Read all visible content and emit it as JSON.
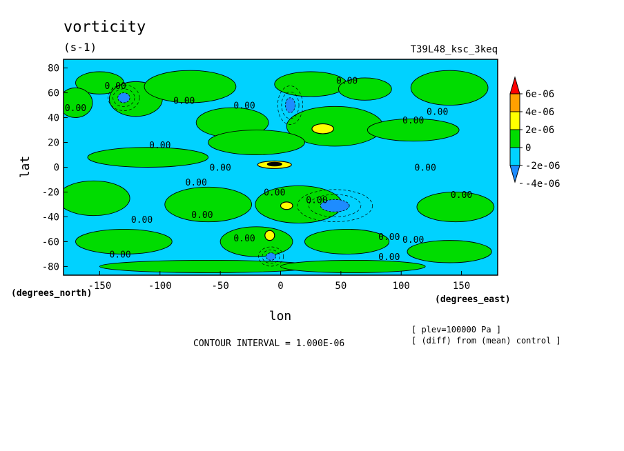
{
  "chart_data": {
    "type": "heatmap",
    "title": "vorticity",
    "subtitle": "(s-1)",
    "dataset_label": "T39L48_ksc_3keq",
    "xlabel": "lon",
    "ylabel": "lat",
    "x_units": "(degrees_east)",
    "y_units": "(degrees_north)",
    "xlim": [
      -180,
      180
    ],
    "ylim": [
      -87,
      87
    ],
    "x_ticks": [
      -150,
      -100,
      -50,
      0,
      50,
      100,
      150
    ],
    "y_ticks": [
      -80,
      -60,
      -40,
      -20,
      0,
      20,
      40,
      60,
      80
    ],
    "x_tick_labels": [
      "-150",
      "-100",
      "-50",
      "0",
      "50",
      "100",
      "150"
    ],
    "y_tick_labels": [
      "-80",
      "-60",
      "-40",
      "-20",
      "0",
      "20",
      "40",
      "60",
      "80"
    ],
    "contour_interval_text": "CONTOUR INTERVAL = 1.000E-06",
    "annotations": [
      "[ plev=100000 Pa ]",
      "[ (diff) from (mean) control ]"
    ],
    "colorbar": {
      "labels": [
        "6e-06",
        "4e-06",
        "2e-06",
        "0",
        "-2e-06",
        "-4e-06"
      ],
      "levels": [
        -4e-06,
        -2e-06,
        0,
        2e-06,
        4e-06,
        6e-06
      ],
      "colors": [
        "#1e8cff",
        "#00d2ff",
        "#00dc00",
        "#ffff00",
        "#ffa000",
        "#ff0000"
      ]
    },
    "contour_labels": [
      {
        "text": "0.00",
        "lon": -137,
        "lat": 66
      },
      {
        "text": "0.00",
        "lon": -170,
        "lat": 48
      },
      {
        "text": "0.00",
        "lon": -80,
        "lat": 54
      },
      {
        "text": "0.00",
        "lon": -30,
        "lat": 50
      },
      {
        "text": "0.00",
        "lon": 55,
        "lat": 70
      },
      {
        "text": "0.00",
        "lon": 130,
        "lat": 45
      },
      {
        "text": "0.00",
        "lon": 110,
        "lat": 38
      },
      {
        "text": "0.00",
        "lon": -100,
        "lat": 18
      },
      {
        "text": "0.00",
        "lon": -50,
        "lat": 0
      },
      {
        "text": "0.00",
        "lon": -70,
        "lat": -12
      },
      {
        "text": "0.00",
        "lon": -5,
        "lat": -20
      },
      {
        "text": "0.00",
        "lon": 30,
        "lat": -26
      },
      {
        "text": "0.00",
        "lon": 120,
        "lat": 0
      },
      {
        "text": "0.00",
        "lon": 150,
        "lat": -22
      },
      {
        "text": "0.00",
        "lon": -65,
        "lat": -38
      },
      {
        "text": "0.00",
        "lon": -115,
        "lat": -42
      },
      {
        "text": "0.00",
        "lon": -30,
        "lat": -57
      },
      {
        "text": "0.00",
        "lon": 90,
        "lat": -56
      },
      {
        "text": "0.00",
        "lon": 110,
        "lat": -58
      },
      {
        "text": "0.00",
        "lon": -133,
        "lat": -70
      },
      {
        "text": "0.00",
        "lon": 90,
        "lat": -72
      }
    ],
    "positive_regions": [
      {
        "lon": -150,
        "lat": 68,
        "rlon": 20,
        "rlat": 9,
        "level": 1
      },
      {
        "lon": -120,
        "lat": 55,
        "rlon": 22,
        "rlat": 14,
        "level": 1
      },
      {
        "lon": -75,
        "lat": 65,
        "rlon": 38,
        "rlat": 13,
        "level": 1
      },
      {
        "lon": 25,
        "lat": 67,
        "rlon": 30,
        "rlat": 10,
        "level": 1
      },
      {
        "lon": 70,
        "lat": 63,
        "rlon": 22,
        "rlat": 9,
        "level": 1
      },
      {
        "lon": 140,
        "lat": 64,
        "rlon": 32,
        "rlat": 14,
        "level": 1
      },
      {
        "lon": -170,
        "lat": 52,
        "rlon": 14,
        "rlat": 12,
        "level": 1
      },
      {
        "lon": -40,
        "lat": 36,
        "rlon": 30,
        "rlat": 12,
        "level": 1
      },
      {
        "lon": 45,
        "lat": 33,
        "rlon": 40,
        "rlat": 16,
        "level": 1
      },
      {
        "lon": 110,
        "lat": 30,
        "rlon": 38,
        "rlat": 9,
        "level": 1
      },
      {
        "lon": -110,
        "lat": 8,
        "rlon": 50,
        "rlat": 8,
        "level": 1
      },
      {
        "lon": -20,
        "lat": 20,
        "rlon": 40,
        "rlat": 10,
        "level": 1
      },
      {
        "lon": -155,
        "lat": -25,
        "rlon": 30,
        "rlat": 14,
        "level": 1
      },
      {
        "lon": -60,
        "lat": -30,
        "rlon": 36,
        "rlat": 14,
        "level": 1
      },
      {
        "lon": 15,
        "lat": -30,
        "rlon": 36,
        "rlat": 15,
        "level": 1
      },
      {
        "lon": 145,
        "lat": -32,
        "rlon": 32,
        "rlat": 12,
        "level": 1
      },
      {
        "lon": -130,
        "lat": -60,
        "rlon": 40,
        "rlat": 10,
        "level": 1
      },
      {
        "lon": -20,
        "lat": -60,
        "rlon": 30,
        "rlat": 12,
        "level": 1
      },
      {
        "lon": 55,
        "lat": -60,
        "rlon": 35,
        "rlat": 10,
        "level": 1
      },
      {
        "lon": 140,
        "lat": -68,
        "rlon": 35,
        "rlat": 9,
        "level": 1
      },
      {
        "lon": -60,
        "lat": -80,
        "rlon": 90,
        "rlat": 5,
        "level": 1
      },
      {
        "lon": 60,
        "lat": -80,
        "rlon": 60,
        "rlat": 5,
        "level": 1
      },
      {
        "lon": 35,
        "lat": 31,
        "rlon": 9,
        "rlat": 4,
        "level": 2
      },
      {
        "lon": -5,
        "lat": 2,
        "rlon": 14,
        "rlat": 3,
        "level": 2
      },
      {
        "lon": 5,
        "lat": -31,
        "rlon": 5,
        "rlat": 3,
        "level": 2
      },
      {
        "lon": -9,
        "lat": -55,
        "rlon": 4,
        "rlat": 4,
        "level": 2
      },
      {
        "lon": -5,
        "lat": 2.5,
        "rlon": 6,
        "rlat": 1.5,
        "level": 3
      }
    ],
    "negative_regions": [
      {
        "lon": -130,
        "lat": 56,
        "rlon": 5,
        "rlat": 4,
        "level": -2
      },
      {
        "lon": 8,
        "lat": 50,
        "rlon": 4,
        "rlat": 6,
        "level": -2
      },
      {
        "lon": 45,
        "lat": -31,
        "rlon": 12,
        "rlat": 5,
        "level": -2
      },
      {
        "lon": -8,
        "lat": -72,
        "rlon": 4,
        "rlat": 3,
        "level": -2
      }
    ]
  }
}
